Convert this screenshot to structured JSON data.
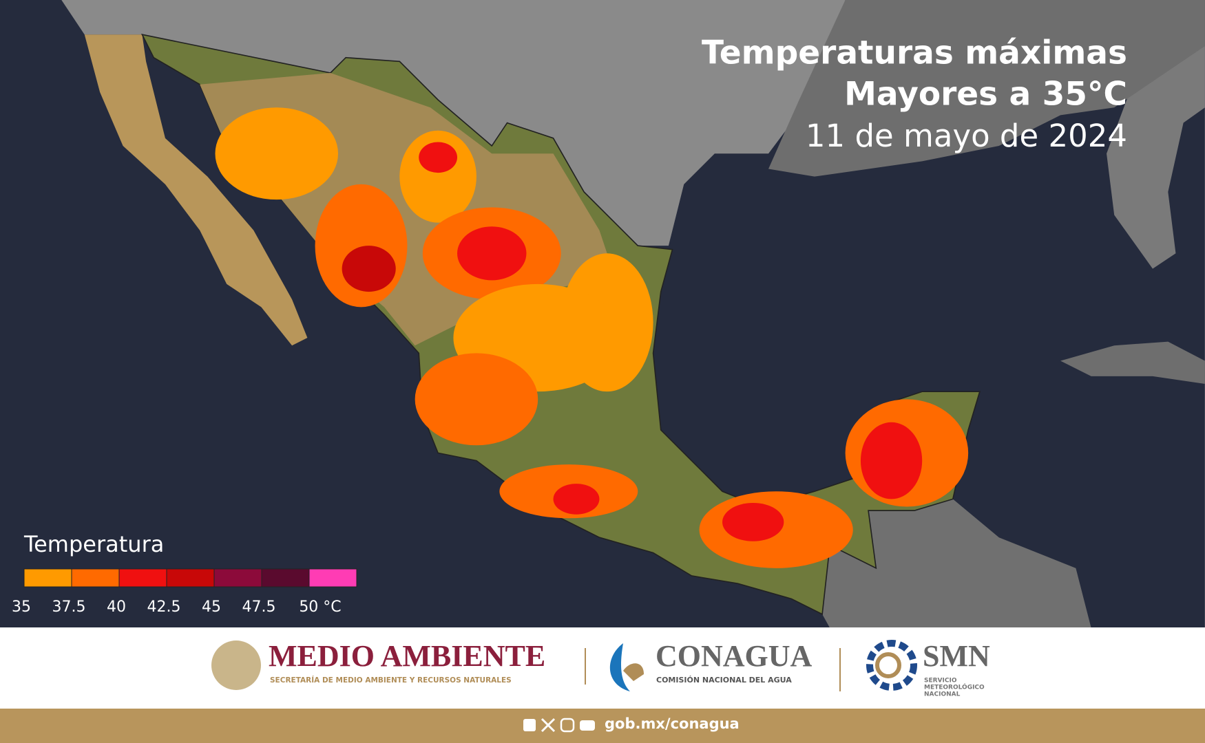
{
  "title": {
    "line1": "Temperaturas máximas",
    "line2": "Mayores a 35°C",
    "date": "11 de mayo de 2024"
  },
  "legend": {
    "title": "Temperatura",
    "colors": [
      "#ff9a00",
      "#ff6a00",
      "#f01010",
      "#c80808",
      "#8c0a3a",
      "#5a0a2e",
      "#ff3cb4"
    ],
    "labels": [
      "35",
      "37.5",
      "40",
      "42.5",
      "45",
      "47.5",
      "50 °C"
    ]
  },
  "footer": {
    "semarnat": {
      "name": "MEDIO AMBIENTE",
      "subtitle": "SECRETARÍA DE MEDIO AMBIENTE Y RECURSOS NATURALES"
    },
    "conagua": {
      "name": "CONAGUA",
      "subtitle": "COMISIÓN NACIONAL DEL AGUA"
    },
    "smn": {
      "name": "SMN",
      "subtitle": [
        "SERVICIO",
        "METEOROLÓGICO",
        "NACIONAL"
      ]
    },
    "url": "gob.mx/conagua"
  }
}
